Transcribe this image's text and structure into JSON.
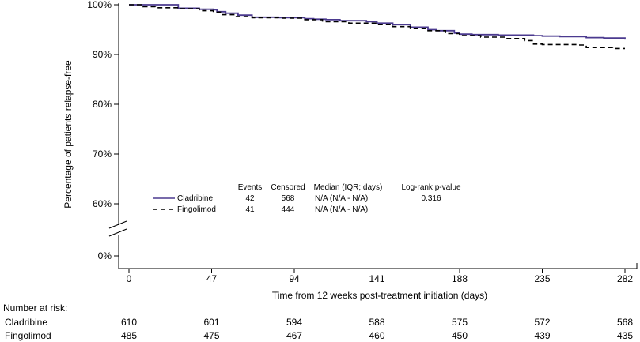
{
  "chart_data": {
    "type": "line",
    "subtype": "kaplan-meier",
    "title": "",
    "xlabel": "Time from 12 weeks post-treatment initiation (days)",
    "ylabel": "Percentage of patients relapse-free",
    "xlim": [
      0,
      282
    ],
    "ylim_upper_segment": [
      57,
      100
    ],
    "y_axis_break": true,
    "x_ticks": [
      0,
      47,
      94,
      141,
      188,
      235,
      282
    ],
    "y_tick_labels": [
      "100%",
      "90%",
      "80%",
      "70%",
      "60%",
      "0%"
    ],
    "y_tick_values": [
      100,
      90,
      80,
      70,
      60,
      0
    ],
    "grid": false,
    "series": [
      {
        "name": "Cladribine",
        "style": "solid",
        "color": "#4b3a8f",
        "x": [
          0,
          25,
          28,
          40,
          48,
          50,
          55,
          62,
          70,
          85,
          94,
          100,
          105,
          112,
          120,
          135,
          141,
          150,
          160,
          170,
          175,
          185,
          188,
          195,
          200,
          210,
          230,
          235,
          245,
          260,
          270,
          282
        ],
        "y": [
          100,
          100,
          99.3,
          99.1,
          99.0,
          98.6,
          98.3,
          97.9,
          97.5,
          97.4,
          97.4,
          97.2,
          97.1,
          97.0,
          96.8,
          96.6,
          96.3,
          96.0,
          95.5,
          95.0,
          94.8,
          94.3,
          94.1,
          94.0,
          94.0,
          93.9,
          93.8,
          93.7,
          93.6,
          93.4,
          93.3,
          93.0
        ]
      },
      {
        "name": "Fingolimod",
        "style": "dashed",
        "color": "#000000",
        "x": [
          0,
          8,
          15,
          28,
          40,
          48,
          52,
          60,
          70,
          85,
          94,
          100,
          110,
          125,
          141,
          150,
          160,
          170,
          180,
          188,
          200,
          215,
          225,
          230,
          235,
          255,
          260,
          275,
          282
        ],
        "y": [
          100,
          99.6,
          99.4,
          99.2,
          98.8,
          98.5,
          98.0,
          97.6,
          97.4,
          97.3,
          97.3,
          97.0,
          96.6,
          96.3,
          96.0,
          95.6,
          95.2,
          94.8,
          94.2,
          93.8,
          93.5,
          93.2,
          92.8,
          92.1,
          92.0,
          91.9,
          91.4,
          91.2,
          91.2
        ]
      }
    ],
    "legend": {
      "headers": [
        "Events",
        "Censored",
        "Median (IQR; days)",
        "Log-rank p-value"
      ],
      "rows": [
        {
          "name": "Cladribine",
          "events": "42",
          "censored": "568",
          "median": "N/A (N/A - N/A)",
          "pvalue": "0.316"
        },
        {
          "name": "Fingolimod",
          "events": "41",
          "censored": "444",
          "median": "N/A (N/A - N/A)",
          "pvalue": ""
        }
      ]
    },
    "risk_table": {
      "title": "Number at risk:",
      "rows": [
        {
          "name": "Cladribine",
          "values": [
            610,
            601,
            594,
            588,
            575,
            572,
            568
          ]
        },
        {
          "name": "Fingolimod",
          "values": [
            485,
            475,
            467,
            460,
            450,
            439,
            435
          ]
        }
      ]
    }
  }
}
